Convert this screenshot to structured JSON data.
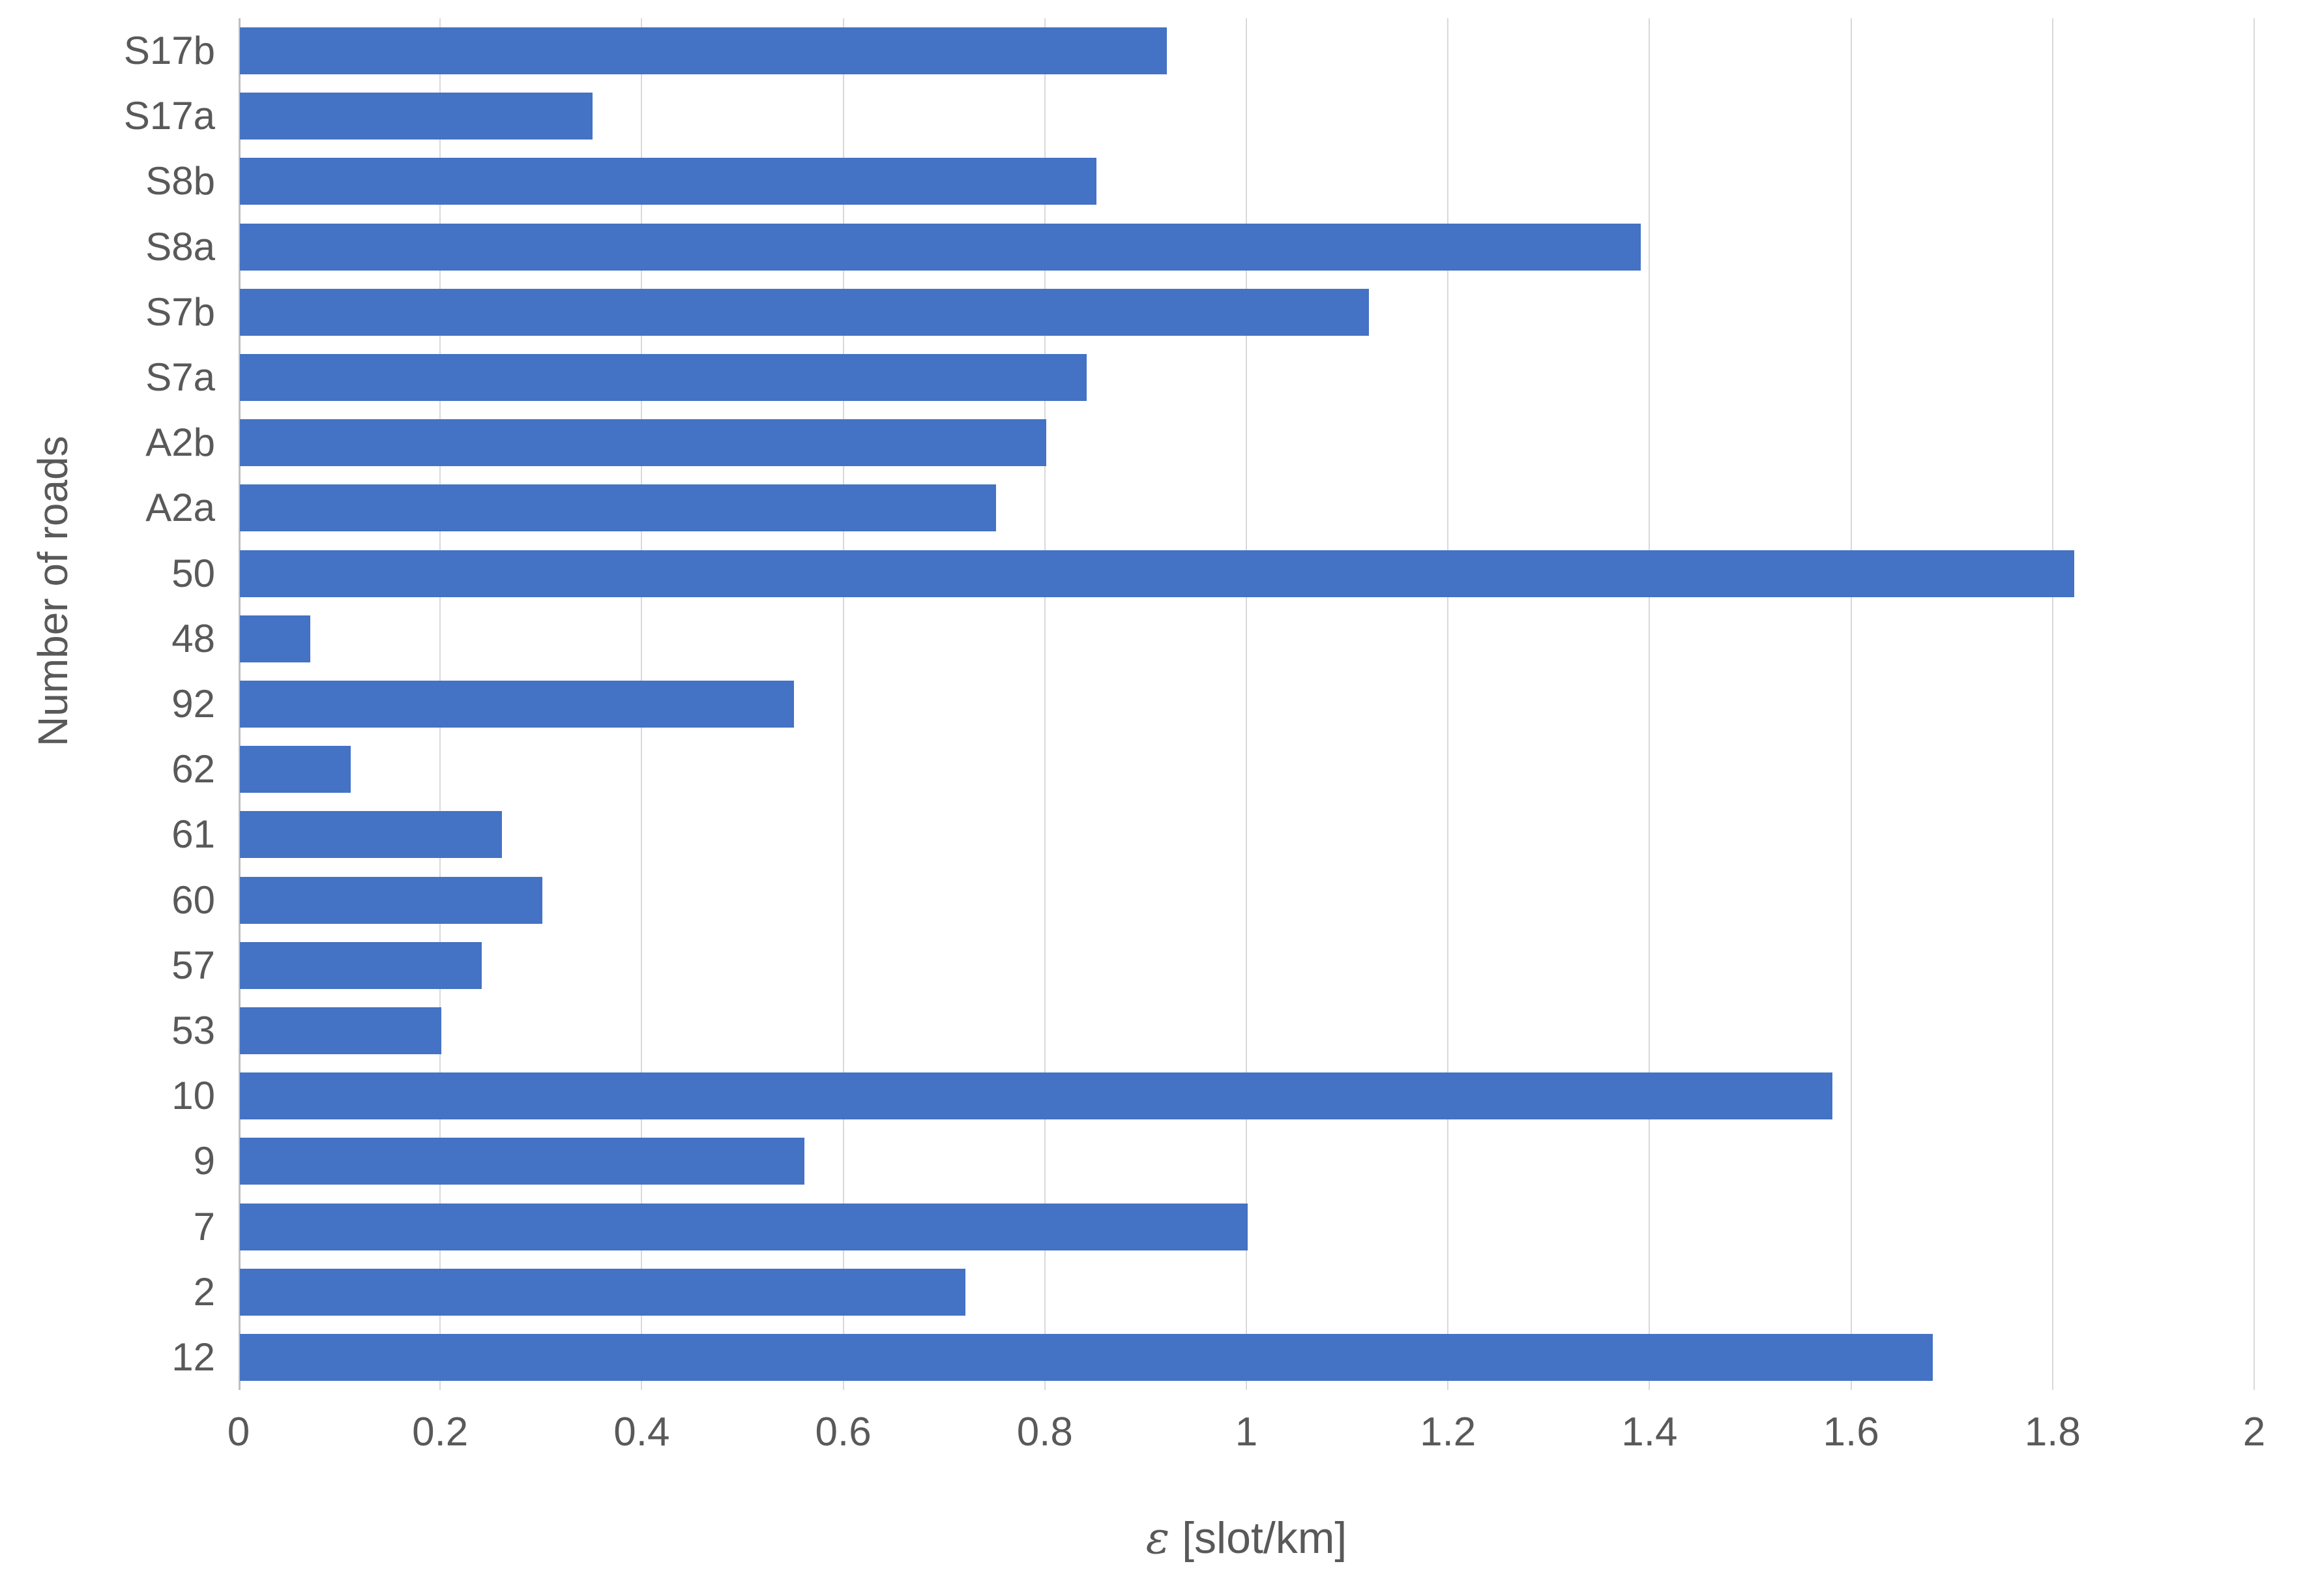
{
  "chart_data": {
    "type": "bar",
    "orientation": "horizontal",
    "title": "",
    "xlabel": "ε [slot/km]",
    "ylabel": "Number of roads",
    "xlabel_symbol": "ε",
    "xlabel_unit": " [slot/km]",
    "xlim": [
      0,
      2
    ],
    "xticks": [
      0,
      0.2,
      0.4,
      0.6,
      0.8,
      1,
      1.2,
      1.4,
      1.6,
      1.8,
      2
    ],
    "xtick_labels": [
      "0",
      "0.2",
      "0.4",
      "0.6",
      "0.8",
      "1",
      "1.2",
      "1.4",
      "1.6",
      "1.8",
      "2"
    ],
    "grid": "vertical",
    "legend": "none",
    "bar_color": "#4472C4",
    "gridline_color": "#D9D9D9",
    "axis_line_color": "#BFBFBF",
    "text_color": "#595959",
    "categories": [
      "S17b",
      "S17a",
      "S8b",
      "S8a",
      "S7b",
      "S7a",
      "A2b",
      "A2a",
      "50",
      "48",
      "92",
      "62",
      "61",
      "60",
      "57",
      "53",
      "10",
      "9",
      "7",
      "2",
      "12"
    ],
    "values": [
      0.92,
      0.35,
      0.85,
      1.39,
      1.12,
      0.84,
      0.8,
      0.75,
      1.82,
      0.07,
      0.55,
      0.11,
      0.26,
      0.3,
      0.24,
      0.2,
      1.58,
      0.56,
      1.0,
      0.72,
      1.68
    ]
  }
}
